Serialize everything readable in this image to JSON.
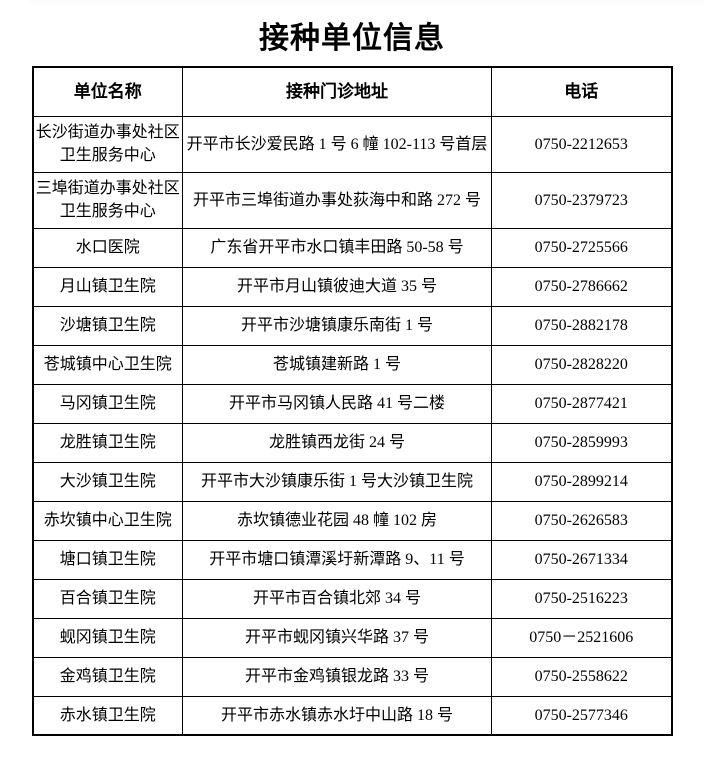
{
  "title": "接种单位信息",
  "table": {
    "headers": [
      "单位名称",
      "接种门诊地址",
      "电话"
    ],
    "rows": [
      {
        "name": "长沙街道办事处社区卫生服务中心",
        "address": "开平市长沙爱民路 1 号 6 幢 102-113 号首层",
        "phone": "0750-2212653"
      },
      {
        "name": "三埠街道办事处社区卫生服务中心",
        "address": "开平市三埠街道办事处荻海中和路 272 号",
        "phone": "0750-2379723"
      },
      {
        "name": "水口医院",
        "address": "广东省开平市水口镇丰田路 50-58 号",
        "phone": "0750-2725566"
      },
      {
        "name": "月山镇卫生院",
        "address": "开平市月山镇彼迪大道 35 号",
        "phone": "0750-2786662"
      },
      {
        "name": "沙塘镇卫生院",
        "address": "开平市沙塘镇康乐南街 1 号",
        "phone": "0750-2882178"
      },
      {
        "name": "苍城镇中心卫生院",
        "address": "苍城镇建新路 1 号",
        "phone": "0750-2828220"
      },
      {
        "name": "马冈镇卫生院",
        "address": "开平市马冈镇人民路 41 号二楼",
        "phone": "0750-2877421"
      },
      {
        "name": "龙胜镇卫生院",
        "address": "龙胜镇西龙街 24 号",
        "phone": "0750-2859993"
      },
      {
        "name": "大沙镇卫生院",
        "address": "开平市大沙镇康乐街 1 号大沙镇卫生院",
        "phone": "0750-2899214"
      },
      {
        "name": "赤坎镇中心卫生院",
        "address": "赤坎镇德业花园 48 幢 102 房",
        "phone": "0750-2626583"
      },
      {
        "name": "塘口镇卫生院",
        "address": "开平市塘口镇潭溪圩新潭路 9、11 号",
        "phone": "0750-2671334"
      },
      {
        "name": "百合镇卫生院",
        "address": "开平市百合镇北郊 34 号",
        "phone": "0750-2516223"
      },
      {
        "name": "蚬冈镇卫生院",
        "address": "开平市蚬冈镇兴华路 37 号",
        "phone": "0750－2521606"
      },
      {
        "name": "金鸡镇卫生院",
        "address": "开平市金鸡镇银龙路 33 号",
        "phone": "0750-2558622"
      },
      {
        "name": "赤水镇卫生院",
        "address": "开平市赤水镇赤水圩中山路 18 号",
        "phone": "0750-2577346"
      }
    ]
  }
}
